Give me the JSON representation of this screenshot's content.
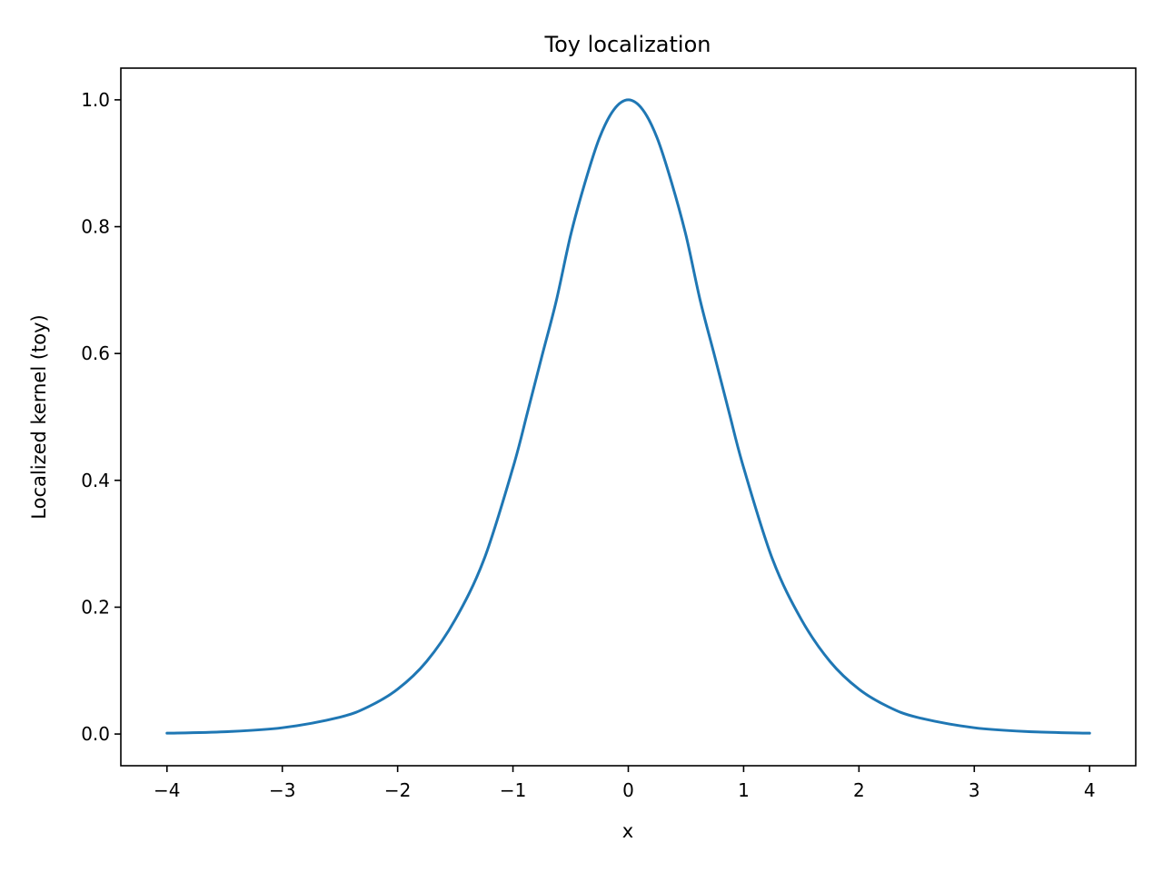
{
  "chart_data": {
    "type": "line",
    "title": "Toy localization",
    "xlabel": "x",
    "ylabel": "Localized kernel (toy)",
    "xlim": [
      -4.4,
      4.4
    ],
    "ylim": [
      -0.05,
      1.05
    ],
    "grid": false,
    "legend": "none",
    "xticks": [
      {
        "value": -4,
        "label": "−4"
      },
      {
        "value": -3,
        "label": "−3"
      },
      {
        "value": -2,
        "label": "−2"
      },
      {
        "value": -1,
        "label": "−1"
      },
      {
        "value": 0,
        "label": "0"
      },
      {
        "value": 1,
        "label": "1"
      },
      {
        "value": 2,
        "label": "2"
      },
      {
        "value": 3,
        "label": "3"
      },
      {
        "value": 4,
        "label": "4"
      }
    ],
    "yticks": [
      {
        "value": 0.0,
        "label": "0.0"
      },
      {
        "value": 0.2,
        "label": "0.2"
      },
      {
        "value": 0.4,
        "label": "0.4"
      },
      {
        "value": 0.6,
        "label": "0.6"
      },
      {
        "value": 0.8,
        "label": "0.8"
      },
      {
        "value": 1.0,
        "label": "1.0"
      }
    ],
    "series": [
      {
        "color": "#1f77b4",
        "x": [
          -4.0,
          -3.5,
          -3.0,
          -2.5,
          -2.25,
          -2.0,
          -1.75,
          -1.5,
          -1.25,
          -1.0,
          -0.875,
          -0.75,
          -0.625,
          -0.5,
          -0.375,
          -0.25,
          -0.125,
          0.0,
          0.125,
          0.25,
          0.375,
          0.5,
          0.625,
          0.75,
          0.875,
          1.0,
          1.25,
          1.5,
          1.75,
          2.0,
          2.25,
          2.5,
          3.0,
          3.5,
          4.0
        ],
        "y": [
          0.0013,
          0.0036,
          0.0099,
          0.0266,
          0.0434,
          0.0707,
          0.1142,
          0.1807,
          0.2759,
          0.42,
          0.5064,
          0.5951,
          0.6826,
          0.7864,
          0.8698,
          0.94,
          0.9845,
          1.0,
          0.9845,
          0.94,
          0.8698,
          0.7864,
          0.6826,
          0.5951,
          0.5064,
          0.42,
          0.2759,
          0.1807,
          0.1142,
          0.0707,
          0.0434,
          0.0266,
          0.0099,
          0.0036,
          0.0013
        ]
      }
    ]
  }
}
